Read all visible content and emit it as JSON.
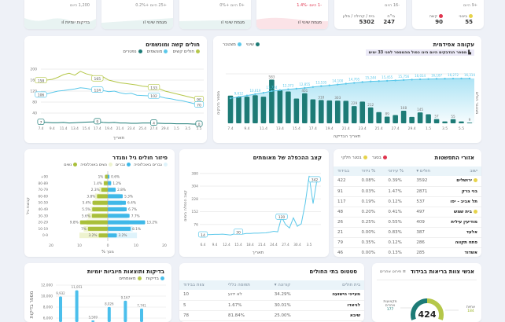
{
  "top_cards": [
    {
      "today": "+9 היום",
      "items": [
        {
          "label": "בינוני",
          "value": "55",
          "color": "#e6d34a"
        },
        {
          "label": "קשה",
          "value": "90",
          "color": "#e0344e"
        }
      ]
    },
    {
      "today": "-16 היום",
      "items": [
        {
          "label": "בי\"ח",
          "value": "247"
        },
        {
          "label": "בית / קהילה / מלון",
          "value": "5302"
        }
      ]
    },
    {
      "today": "-1 היום -1.4%",
      "trend_label": "מגמת שינוי"
    },
    {
      "today": "+0 היום +0%",
      "trend_label": "מגמת שינוי"
    },
    {
      "today": "+25 היום +0.2%",
      "trend_label": "מגמת שינוי"
    },
    {
      "today": "1,200 היום",
      "trend_label": "בדיקות יומיות"
    }
  ],
  "epi": {
    "title": "עקומה אפידמית",
    "banner": "מספר הנדבקים היום הינו כפול מהמספר לפני 33 ימים",
    "legend": [
      "שינוי",
      "מצטבר"
    ],
    "ylabel_left": "מספר נדבקים",
    "ylabel_right": "מצטבר חולים",
    "xlabel": "תאריך הבדיקה",
    "colors": {
      "bar": "#1d7b76",
      "line": "#5bc8ea"
    }
  },
  "severe": {
    "title": "חולים קשה ומונשמים",
    "legend": [
      "חולים קשים",
      "מונשמים",
      "נפטרים"
    ],
    "xlabel": "תאריך"
  },
  "doubling": {
    "title": "קצב ההכפלה של מאומתים",
    "ylabel": "קצב הכפלה בימים",
    "xlabel": "תאריך"
  },
  "pyramid": {
    "title": "פיזור חולים גיל ומגדר",
    "legend": [
      "גברים באוכלוסיה",
      "גברים",
      "נשים באוכלוסיה",
      "נשים"
    ],
    "ylabel": "קבוצת גיל",
    "xlabel": "% מסך"
  },
  "spread": {
    "title": "אזורי התפשטות",
    "legend": [
      "בסגר",
      "בסגר חלקי"
    ],
    "headers": [
      "ישוב",
      "חולים ▾",
      "% עירוני",
      "% נידוד",
      "בבידוד"
    ],
    "rows": [
      {
        "city": "ירושלים",
        "mark": "partial",
        "sick": "3592",
        "p1": "0.39%",
        "p2": "0.08%",
        "iso": "422"
      },
      {
        "city": "בני ברק",
        "mark": "",
        "sick": "2871",
        "p1": "1.47%",
        "p2": "0.03%",
        "iso": "91"
      },
      {
        "city": "תל אביב - יפו",
        "mark": "",
        "sick": "537",
        "p1": "0.12%",
        "p2": "0.19%",
        "iso": "117"
      },
      {
        "city": "בית שמש",
        "mark": "partial",
        "sick": "497",
        "p1": "0.41%",
        "p2": "0.20%",
        "iso": "48"
      },
      {
        "city": "מודיעין עילית",
        "mark": "",
        "sick": "409",
        "p1": "0.55%",
        "p2": "0.25%",
        "iso": "26"
      },
      {
        "city": "אלעד",
        "mark": "",
        "sick": "387",
        "p1": "0.83%",
        "p2": "0.00%",
        "iso": "21"
      },
      {
        "city": "פתח תקווה",
        "mark": "",
        "sick": "286",
        "p1": "0.12%",
        "p2": "0.35%",
        "iso": "79"
      },
      {
        "city": "אשדוד",
        "mark": "",
        "sick": "285",
        "p1": "0.13%",
        "p2": "0.00%",
        "iso": "46"
      }
    ]
  },
  "tests": {
    "title": "בדיקות ותוצאות חיוביות יומיות",
    "legend": [
      "בדיקות",
      "מאומתים"
    ],
    "ylabel": "מספר בדיקות"
  },
  "hospitals": {
    "title": "סטטוס בתי החולים",
    "headers": [
      "בית חולים",
      "קורונה ▾",
      "תפוסה כללי",
      "צוות בבידוד"
    ],
    "rows": [
      {
        "name": "מעייני הישועה",
        "corona": "34.29%",
        "general": "לא ידוע",
        "staff": "10"
      },
      {
        "name": "לניאדו",
        "corona": "30.01%",
        "general": "1.67%",
        "staff": "5"
      },
      {
        "name": "שיבא",
        "corona": "25.00%",
        "general": "81.84%",
        "staff": "78"
      }
    ]
  },
  "staff": {
    "title": "אנשי צוות בריאות בבידוד",
    "others_link": "פירוט אחרים",
    "total": "424",
    "nurses_label": "אחיות",
    "nurses": 184,
    "others_label": "מקצועות אחרים",
    "others": 177
  },
  "chart_data": [
    {
      "type": "bar",
      "title": "עקומה אפידמית",
      "x": [
        "7.4",
        "8.4",
        "9.4",
        "10.4",
        "11.4",
        "12.4",
        "13.4",
        "14.4",
        "15.4",
        "16.4",
        "17.4",
        "18.4",
        "19.4",
        "20.4",
        "21.4",
        "22.4",
        "23.4",
        "24.4",
        "25.4",
        "26.4",
        "27.4",
        "28.4",
        "29.4",
        "30.4",
        "1.5",
        "2.5",
        "3.5",
        "4.5",
        "5.5",
        "6.5"
      ],
      "xticks": [
        "7.4",
        "9.4",
        "11.4",
        "13.4",
        "15.4",
        "17.4",
        "19.4",
        "21.4",
        "23.4",
        "25.4",
        "27.4",
        "29.4",
        "1.5",
        "3.5",
        "5.5"
      ],
      "series": [
        {
          "name": "שינוי",
          "type": "bar",
          "values": [
            370,
            355,
            355,
            375,
            355,
            583,
            440,
            425,
            330,
            401,
            320,
            310,
            305,
            303,
            300,
            229,
            290,
            212,
            150,
            89,
            110,
            168,
            85,
            145,
            120,
            57,
            25,
            55,
            25,
            9
          ],
          "labeled": [
            5,
            9,
            11,
            13,
            15,
            17,
            19,
            21,
            23,
            25,
            27,
            29
          ]
        },
        {
          "name": "מצטבר",
          "type": "line",
          "values": [
            9100,
            9612,
            10100,
            10619,
            11100,
            11724,
            12050,
            12373,
            12600,
            12855,
            13200,
            13535,
            13800,
            14100,
            14400,
            14705,
            15000,
            15244,
            15350,
            15455,
            15600,
            15756,
            15880,
            16014,
            16100,
            16187,
            16230,
            16272,
            16300,
            16314
          ],
          "labeled": [
            1,
            3,
            5,
            7,
            9,
            11,
            13,
            15,
            17,
            19,
            21,
            23,
            25,
            27,
            29
          ]
        }
      ],
      "ylim_bar": [
        0,
        650
      ],
      "ylim_line": [
        0,
        18000
      ]
    },
    {
      "type": "line",
      "title": "חולים קשה ומונשמים",
      "x": [
        "7.4",
        "8.4",
        "9.4",
        "10.4",
        "11.4",
        "12.4",
        "13.4",
        "14.4",
        "15.4",
        "16.4",
        "17.4",
        "18.4",
        "19.4",
        "20.4",
        "21.4",
        "22.4",
        "23.4",
        "24.4",
        "25.4",
        "26.4",
        "27.4",
        "28.4",
        "29.4",
        "30.4",
        "1.5",
        "2.5",
        "3.5",
        "4.5",
        "5.5"
      ],
      "xticks": [
        "7.4",
        "9.4",
        "11.4",
        "13.4",
        "15.4",
        "17.4",
        "19.4",
        "21.4",
        "23.4",
        "25.4",
        "27.4",
        "29.4",
        "1.5",
        "3.5",
        "5.5"
      ],
      "yticks": [
        40,
        80,
        120,
        160,
        200
      ],
      "ylim": [
        0,
        200
      ],
      "series": [
        {
          "name": "חולים קשים",
          "color": "#b5c74a",
          "values": [
            158,
            160,
            163,
            170,
            180,
            185,
            178,
            192,
            183,
            178,
            165,
            172,
            160,
            155,
            150,
            148,
            145,
            142,
            138,
            136,
            133,
            128,
            120,
            115,
            110,
            105,
            100,
            95,
            90
          ]
        },
        {
          "name": "מונשמים",
          "color": "#5bc8ea",
          "values": [
            106,
            110,
            115,
            120,
            122,
            125,
            128,
            132,
            130,
            126,
            124,
            122,
            118,
            120,
            114,
            110,
            112,
            105,
            104,
            103,
            102,
            100,
            95,
            92,
            88,
            85,
            80,
            75,
            70
          ]
        },
        {
          "name": "נפטרים",
          "color": "#1d7b76",
          "values": [
            7,
            6,
            5,
            5,
            6,
            4,
            5,
            6,
            7,
            8,
            9,
            6,
            5,
            6,
            4,
            4,
            3,
            3,
            4,
            4,
            4,
            3,
            2,
            2,
            1,
            1,
            1,
            0,
            0
          ]
        }
      ],
      "labeled": [
        0,
        10,
        20,
        28
      ]
    },
    {
      "type": "line",
      "title": "קצב ההכפלה של מאומתים",
      "x": [
        "6.4",
        "7.4",
        "8.4",
        "9.4",
        "10.4",
        "11.4",
        "12.4",
        "13.4",
        "14.4",
        "15.4",
        "16.4",
        "17.4",
        "18.4",
        "19.4",
        "20.4",
        "21.4",
        "22.4",
        "23.4",
        "24.4",
        "25.4",
        "26.4",
        "27.4",
        "28.4",
        "29.4",
        "30.4",
        "1.5",
        "2.5",
        "3.5",
        "4.5",
        "5.5"
      ],
      "xticks": [
        "6.4",
        "9.4",
        "12.4",
        "15.4",
        "18.4",
        "21.4",
        "24.4",
        "27.4",
        "30.4",
        "3.5"
      ],
      "yticks": [
        76,
        152,
        228,
        304,
        380
      ],
      "ylim": [
        0,
        400
      ],
      "values": [
        14,
        15,
        16,
        17,
        17,
        18,
        16,
        13,
        20,
        30,
        18,
        22,
        22,
        24,
        24,
        25,
        26,
        30,
        35,
        32,
        120,
        75,
        55,
        115,
        65,
        80,
        200,
        365,
        200,
        342
      ],
      "labeled": [
        0,
        9,
        20,
        29
      ]
    },
    {
      "type": "bar",
      "title": "פיזור חולים גיל ומגדר",
      "categories": [
        "+90",
        "80-89",
        "70-79",
        "60-69",
        "50-59",
        "40-49",
        "30-39",
        "20-29",
        "10-19",
        "0-9"
      ],
      "series": [
        {
          "name": "נשים",
          "values": [
            1,
            1.4,
            2.3,
            3.8,
            5.4,
            5.5,
            5.6,
            9.8,
            7,
            3.2
          ]
        },
        {
          "name": "גברים",
          "values": [
            0.6,
            1.2,
            2.8,
            5.3,
            6.4,
            6.7,
            7.7,
            13.2,
            8.1,
            3.2
          ]
        },
        {
          "name": "נשים באוכלוסיה",
          "values": [
            0.4,
            1.5,
            3,
            4.5,
            5,
            6,
            7,
            7.5,
            8.5,
            10
          ]
        },
        {
          "name": "גברים באוכלוסיה",
          "values": [
            0.3,
            1.2,
            2.7,
            4.3,
            5,
            6,
            7,
            7.6,
            8.8,
            10.3
          ]
        }
      ],
      "xticks": [
        20,
        10,
        0,
        10,
        20
      ],
      "xlim": [
        -20,
        20
      ]
    },
    {
      "type": "bar",
      "title": "בדיקות ותוצאות חיוביות יומיות",
      "series": [
        {
          "name": "בדיקות",
          "values": [
            9932,
            11051,
            5569,
            8026,
            9167,
            7741
          ],
          "labels": [
            "9,932",
            "11,051",
            "5,569",
            "8,026",
            "9,167",
            "7,741"
          ]
        }
      ],
      "yticks": [
        "12,000",
        "10,000",
        "8,000",
        "6,000"
      ]
    }
  ]
}
